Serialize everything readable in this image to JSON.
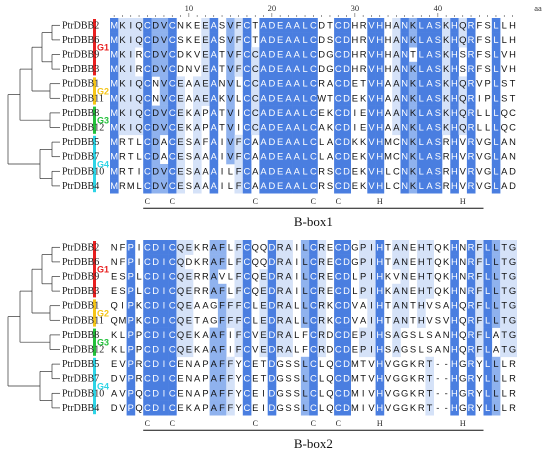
{
  "unit_label": "aa",
  "ruler_ticks": [
    "10",
    "20",
    "30",
    "40"
  ],
  "colors": {
    "dark": "#4a7ee0",
    "mid": "#8fb2ee",
    "light": "#d5e2f8",
    "G1": "#e82020",
    "G2": "#f5c518",
    "G3": "#22c03a",
    "G4": "#2ed4e6"
  },
  "groups": [
    "G1",
    "G2",
    "G3",
    "G4"
  ],
  "panels": [
    {
      "title": "B-box1",
      "rows": [
        {
          "name": "PtrDBB2",
          "seq": "MKIQCDVCNKEEASVFCTADEAALCDTCDHRVHHANKLASKHQRFSLLH"
        },
        {
          "name": "PtrDBB6",
          "seq": "MKIQCDVCSKEEASVFCTADEAALCDSCDHRVHHANKLASKHQRFSLLH"
        },
        {
          "name": "PtrDBB9",
          "seq": "MKIRCDVCDKVEATVFCCADEAALCDGCDHRVHHANTLASKHSRFSLVH"
        },
        {
          "name": "PtrDBB3",
          "seq": "MKIRCDVCDNVEATVFCCADEAALCDGCDHRVHHANKLASKHSRFSLVH"
        },
        {
          "name": "PtrDBB1",
          "seq": "MKIQCNVCEAAEANVLCCADEAALCRACDETVHAANKLASKHQRVPLST"
        },
        {
          "name": "PtrDBB11",
          "seq": "MKIQCNVCEAAEAKVLCCADEAALCWTCDEKVHAANKLASKHQRIPLST"
        },
        {
          "name": "PtrDBB8",
          "seq": "MKIQCDVCEKAPATVICCADEAALCEKCDIEVHAANKLASKHQRLLLQC"
        },
        {
          "name": "PtrDBB12",
          "seq": "MKIQCDVCEKAPATVICCADEAALCAKCDIEVHAANKLASKHQRLLLQC"
        },
        {
          "name": "PtrDBB5",
          "seq": "MRTLCDACESAFAIVFCAADEAALCLACDKKVHMCNKLASRHVRVGLAN"
        },
        {
          "name": "PtrDBB7",
          "seq": "MRTLCDACESAAAIVFCAADEAALCLACDEKVHMCNKLASRHVRVGLAN"
        },
        {
          "name": "PtrDBB10",
          "seq": "MRTICDVCESAAAILFCAADEAALCRSCDEKVHLCNKLASRHVRVGLAD"
        },
        {
          "name": "PtrDBB4",
          "seq": "MRMLCDVCESAAAILFCAADEAALCRSCDEKVHLCNKLASRHVRVGLAD"
        }
      ],
      "consensus": [
        "C",
        "C",
        "C",
        "C",
        "C",
        "H",
        "H"
      ]
    },
    {
      "title": "B-box2",
      "rows": [
        {
          "name": "PtrDBB2",
          "seq": "NFPICDICQEKRAFLFCQQDRAILCRECDGPIHTANEHTQKHNRFLLTG"
        },
        {
          "name": "PtrDBB6",
          "seq": "NFPICDICQDKRAFLFCQQDRAILCRECDGPIHTANEHTQKHNRFLLTG"
        },
        {
          "name": "PtrDBB9",
          "seq": "ESPLCDICQERRAVLFCQEDRAILCRECDLPIHKVNEHTQKHNRFLLTG"
        },
        {
          "name": "PtrDBB3",
          "seq": "ESPLCDICQERRAFLFCQEDRAILCRECDLPIHKANEHTQKHNRFLLTG"
        },
        {
          "name": "PtrDBB1",
          "seq": "QIPKCDICQEAAGFFFCLEDRALLCRKCDVAIHTANTHVSAHQRFLLTG"
        },
        {
          "name": "PtrDBB11",
          "seq": "QMPKCDICQETAGFFFCLEDRALLCRKCDVAIHTANTHVSVHQRFLLTG"
        },
        {
          "name": "PtrDBB8",
          "seq": "KLPPCDICQEKAAFIFCVEDRALFCRDCDEPIHSAGSLSANHQRFLATG"
        },
        {
          "name": "PtrDBB12",
          "seq": "KLPPCDICQEKAAFIFCVEDRALFCRDCDEPIHSAGSLSANHQRFLATG"
        },
        {
          "name": "PtrDBB5",
          "seq": "EVPRCDICENAPAFFYCETDGSSLCLQCDMTVHVGGKRT--HGRYLLLR"
        },
        {
          "name": "PtrDBB7",
          "seq": "DVPRCDICENAPAFFYCETDGSSLCLQCDMTVHVGGKRT--HGRYLLLR"
        },
        {
          "name": "PtrDBB10",
          "seq": "AVPQCDICENAPAFFYCEIDGSSLCLQCDMIVHVGGKRT--HGRYLLLR"
        },
        {
          "name": "PtrDBB4",
          "seq": "DVPQCDICEKAPAFFYCEIDGSSLCLQCDMIVHVGGKRT--HGRYLLLR"
        }
      ],
      "consensus": [
        "C",
        "C",
        "C",
        "C",
        "C",
        "H",
        "H"
      ]
    }
  ]
}
